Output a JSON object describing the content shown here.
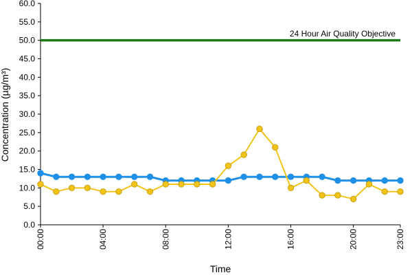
{
  "chart_data": {
    "type": "line",
    "xlabel": "Time",
    "ylabel": "Concentration (µg/m³)",
    "ylim": [
      0,
      60
    ],
    "y_ticks": [
      "0.0",
      "5.0",
      "10.0",
      "15.0",
      "20.0",
      "25.0",
      "30.0",
      "35.0",
      "40.0",
      "45.0",
      "50.0",
      "55.0",
      "60.0"
    ],
    "x_range": [
      0,
      23
    ],
    "x_ticks": [
      {
        "hour": 0,
        "label": "00:00"
      },
      {
        "hour": 4,
        "label": "04:00"
      },
      {
        "hour": 8,
        "label": "08:00"
      },
      {
        "hour": 12,
        "label": "12:00"
      },
      {
        "hour": 16,
        "label": "16:00"
      },
      {
        "hour": 20,
        "label": "20:00"
      },
      {
        "hour": 23,
        "label": "23:00"
      }
    ],
    "grid": false,
    "legend": "none",
    "x": [
      0,
      1,
      2,
      3,
      4,
      5,
      6,
      7,
      8,
      9,
      10,
      11,
      12,
      13,
      14,
      15,
      16,
      17,
      18,
      19,
      20,
      21,
      22,
      23
    ],
    "series": [
      {
        "color": "#1e90e8",
        "values": [
          14,
          13,
          13,
          13,
          13,
          13,
          13,
          13,
          12,
          12,
          12,
          12,
          12,
          13,
          13,
          13,
          13,
          13,
          13,
          12,
          12,
          12,
          12,
          12
        ]
      },
      {
        "color": "#f0c419",
        "values": [
          11,
          9,
          10,
          10,
          9,
          9,
          11,
          9,
          11,
          11,
          11,
          11,
          16,
          19,
          26,
          21,
          10,
          12,
          8,
          8,
          7,
          11,
          9,
          9
        ]
      }
    ],
    "reference_line": {
      "value": 50,
      "label": "24 Hour Air Quality Objective",
      "color": "#1a7a1a"
    }
  }
}
